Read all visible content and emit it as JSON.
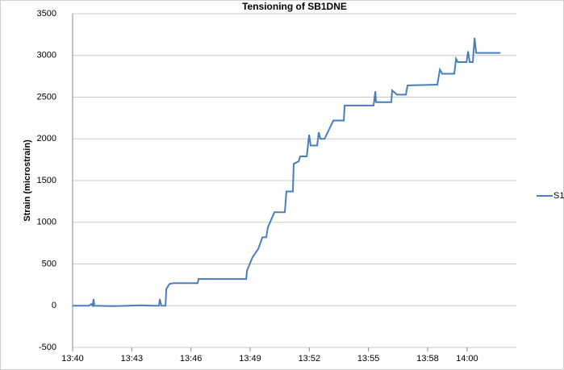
{
  "chart_data": {
    "type": "line",
    "title": "Tensioning of SB1DNE",
    "y_label": "Strain (microstrain)",
    "x": [
      820,
      820.82,
      820.94,
      821.02,
      821.06,
      821.1,
      822.05,
      822.86,
      823.48,
      824.09,
      824.38,
      824.42,
      824.5,
      824.71,
      824.75,
      824.91,
      825.11,
      825.32,
      826.34,
      826.38,
      828.8,
      828.84,
      829.12,
      829.41,
      829.62,
      829.82,
      829.9,
      830.23,
      830.76,
      830.84,
      831.17,
      831.21,
      831.46,
      831.54,
      831.87,
      831.99,
      832.07,
      832.4,
      832.48,
      832.56,
      832.77,
      833.22,
      833.75,
      833.79,
      835.26,
      835.35,
      835.38,
      836.16,
      836.2,
      836.45,
      836.9,
      836.98,
      838.49,
      838.62,
      838.74,
      839.35,
      839.44,
      839.52,
      839.97,
      840.05,
      840.13,
      840.29,
      840.38,
      840.46,
      841.69
    ],
    "series": [
      {
        "name": "S1",
        "color": "#4a7ebb",
        "values": [
          0,
          0,
          20,
          0,
          80,
          0,
          -5,
          0,
          5,
          0,
          0,
          80,
          0,
          0,
          200,
          260,
          270,
          270,
          270,
          320,
          320,
          420,
          580,
          680,
          820,
          820,
          940,
          1120,
          1120,
          1370,
          1370,
          1700,
          1730,
          1790,
          1790,
          2050,
          1920,
          1920,
          2080,
          2000,
          2000,
          2220,
          2220,
          2400,
          2400,
          2570,
          2440,
          2440,
          2580,
          2530,
          2530,
          2640,
          2650,
          2830,
          2780,
          2780,
          2960,
          2920,
          2920,
          3050,
          2920,
          2920,
          3210,
          3030,
          3030
        ]
      }
    ],
    "xlim": [
      820,
      842.5
    ],
    "xticks": [
      {
        "value": 820,
        "label": "13:40"
      },
      {
        "value": 823,
        "label": "13:43"
      },
      {
        "value": 826,
        "label": "13:46"
      },
      {
        "value": 829,
        "label": "13:49"
      },
      {
        "value": 832,
        "label": "13:52"
      },
      {
        "value": 835,
        "label": "13:55"
      },
      {
        "value": 838,
        "label": "13:58"
      },
      {
        "value": 840,
        "label": "14:00"
      }
    ],
    "ylim": [
      -500,
      3500
    ],
    "yticks": [
      -500,
      0,
      500,
      1000,
      1500,
      2000,
      2500,
      3000,
      3500
    ],
    "grid": true,
    "legend": "right"
  }
}
